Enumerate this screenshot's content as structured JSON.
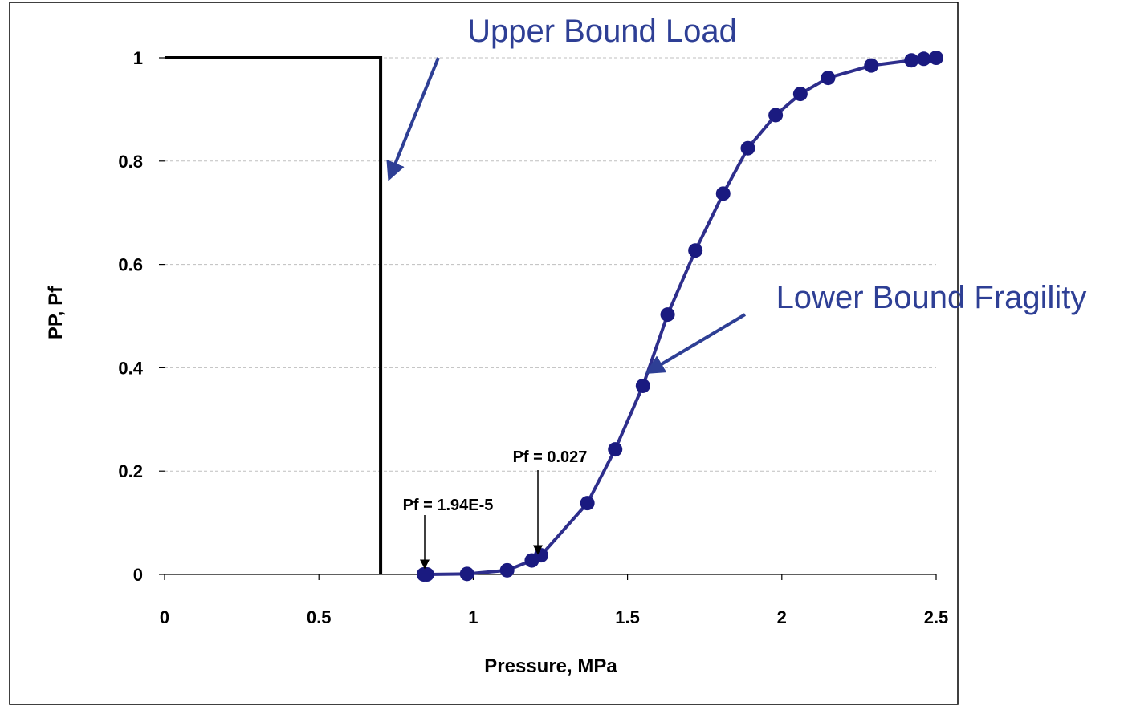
{
  "chart_data": {
    "type": "line",
    "xlabel": "Pressure, MPa",
    "ylabel": "PP, Pf",
    "xlim": [
      0,
      2.5
    ],
    "ylim": [
      0,
      1
    ],
    "x_ticks": [
      "0",
      "0.5",
      "1",
      "1.5",
      "2",
      "2.5"
    ],
    "y_ticks": [
      "0",
      "0.2",
      "0.4",
      "0.6",
      "0.8",
      "1"
    ],
    "grid": "horizontal dashed",
    "series": [
      {
        "color": "#000000",
        "points": [
          [
            0,
            1
          ],
          [
            0.7,
            1
          ],
          [
            0.7,
            0
          ]
        ]
      },
      {
        "color": "#2E2E8C",
        "points": [
          [
            0.84,
            0.0
          ],
          [
            0.85,
            0.0
          ],
          [
            0.98,
            0.001
          ],
          [
            1.11,
            0.008
          ],
          [
            1.19,
            0.027
          ],
          [
            1.22,
            0.037
          ],
          [
            1.37,
            0.138
          ],
          [
            1.46,
            0.242
          ],
          [
            1.55,
            0.365
          ],
          [
            1.63,
            0.503
          ],
          [
            1.72,
            0.627
          ],
          [
            1.81,
            0.737
          ],
          [
            1.89,
            0.825
          ],
          [
            1.98,
            0.889
          ],
          [
            2.06,
            0.93
          ],
          [
            2.15,
            0.961
          ],
          [
            2.29,
            0.985
          ],
          [
            2.42,
            0.995
          ],
          [
            2.46,
            0.998
          ],
          [
            2.5,
            1.0
          ]
        ]
      }
    ],
    "callouts": [
      {
        "text": "Upper Bound Load"
      },
      {
        "text": "Lower Bound Fragility"
      }
    ],
    "annotations": [
      {
        "text": "Pf = 1.94E-5",
        "x": 0.845,
        "y": 0.0
      },
      {
        "text": "Pf = 0.027",
        "x": 1.21,
        "y": 0.027
      }
    ],
    "colors": {
      "callout": "#2E3F95",
      "fragility_line": "#2E2E8C",
      "load_line": "#000000",
      "grid": "#BFBFBF"
    }
  }
}
